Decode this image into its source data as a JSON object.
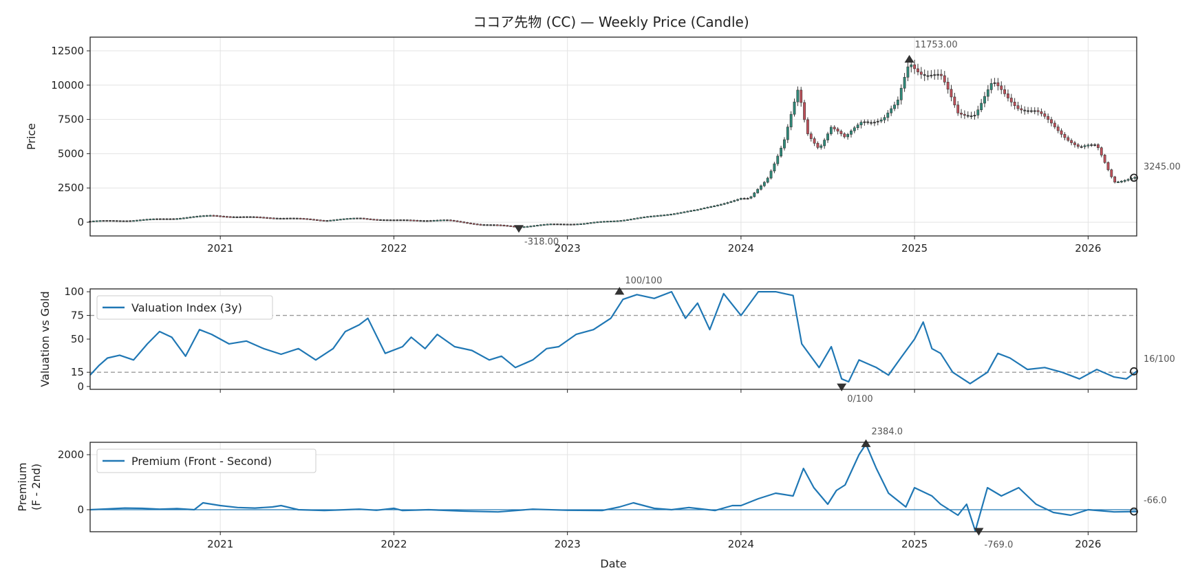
{
  "colors": {
    "line": "#1f77b4",
    "candle_up": "#2e8b7a",
    "candle_down": "#c0505a",
    "candle_neutral": "#444444",
    "threshold": "#999999",
    "marker": "#333333"
  },
  "x_axis": {
    "label": "Date",
    "ticks": [
      {
        "value": 2021.0,
        "label": "2021"
      },
      {
        "value": 2022.0,
        "label": "2022"
      },
      {
        "value": 2023.0,
        "label": "2023"
      },
      {
        "value": 2024.0,
        "label": "2024"
      },
      {
        "value": 2025.0,
        "label": "2025"
      },
      {
        "value": 2026.0,
        "label": "2026"
      }
    ],
    "range": [
      2020.25,
      2026.28
    ]
  },
  "chart_data": [
    {
      "type": "candlestick",
      "id": "price",
      "title": "ココア先物 (CC) — Weekly Price (Candle)",
      "ylabel": "Price",
      "ylim": [
        -1000,
        13500
      ],
      "yticks": [
        "0",
        "2500",
        "5000",
        "7500",
        "10000",
        "12500"
      ],
      "ytick_values": [
        0,
        2500,
        5000,
        7500,
        10000,
        12500
      ],
      "anchors": [
        [
          2020.25,
          80
        ],
        [
          2020.5,
          150
        ],
        [
          2020.75,
          300
        ],
        [
          2020.95,
          500
        ],
        [
          2021.1,
          400
        ],
        [
          2021.4,
          300
        ],
        [
          2021.6,
          150
        ],
        [
          2021.8,
          300
        ],
        [
          2022.0,
          150
        ],
        [
          2022.3,
          150
        ],
        [
          2022.5,
          -150
        ],
        [
          2022.72,
          -318
        ],
        [
          2022.9,
          -150
        ],
        [
          2023.1,
          -80
        ],
        [
          2023.3,
          150
        ],
        [
          2023.5,
          450
        ],
        [
          2023.75,
          900
        ],
        [
          2023.9,
          1400
        ],
        [
          2024.0,
          1700
        ],
        [
          2024.05,
          1700
        ],
        [
          2024.15,
          3200
        ],
        [
          2024.25,
          6000
        ],
        [
          2024.33,
          9500
        ],
        [
          2024.38,
          6500
        ],
        [
          2024.45,
          5500
        ],
        [
          2024.52,
          7000
        ],
        [
          2024.6,
          6000
        ],
        [
          2024.7,
          7500
        ],
        [
          2024.82,
          7500
        ],
        [
          2024.9,
          8500
        ],
        [
          2024.97,
          11753
        ],
        [
          2025.05,
          11000
        ],
        [
          2025.15,
          10500
        ],
        [
          2025.25,
          8000
        ],
        [
          2025.35,
          8000
        ],
        [
          2025.45,
          10000
        ],
        [
          2025.6,
          8500
        ],
        [
          2025.7,
          8000
        ],
        [
          2025.85,
          6500
        ],
        [
          2025.95,
          5500
        ],
        [
          2026.05,
          5500
        ],
        [
          2026.15,
          3000
        ],
        [
          2026.28,
          3245
        ]
      ],
      "annotations": {
        "max": {
          "x": 2024.97,
          "y": 11753,
          "label": "11753.00"
        },
        "min": {
          "x": 2022.72,
          "y": -318,
          "label": "-318.00"
        },
        "last": {
          "x": 2026.28,
          "y": 3245,
          "label": "3245.00"
        }
      }
    },
    {
      "type": "line",
      "id": "valuation",
      "ylabel": "Valuation vs Gold",
      "ylim": [
        -3,
        103
      ],
      "yticks": [
        "0",
        "15",
        "50",
        "75",
        "100"
      ],
      "ytick_values": [
        0,
        15,
        50,
        75,
        100
      ],
      "thresholds": [
        75,
        15
      ],
      "legend": "Valuation Index (3y)",
      "series": [
        [
          2020.25,
          12
        ],
        [
          2020.3,
          22
        ],
        [
          2020.35,
          30
        ],
        [
          2020.42,
          33
        ],
        [
          2020.5,
          28
        ],
        [
          2020.58,
          45
        ],
        [
          2020.65,
          58
        ],
        [
          2020.72,
          52
        ],
        [
          2020.8,
          32
        ],
        [
          2020.88,
          60
        ],
        [
          2020.95,
          55
        ],
        [
          2021.05,
          45
        ],
        [
          2021.15,
          48
        ],
        [
          2021.25,
          40
        ],
        [
          2021.35,
          34
        ],
        [
          2021.45,
          40
        ],
        [
          2021.55,
          28
        ],
        [
          2021.65,
          40
        ],
        [
          2021.72,
          58
        ],
        [
          2021.8,
          65
        ],
        [
          2021.85,
          72
        ],
        [
          2021.95,
          35
        ],
        [
          2022.05,
          42
        ],
        [
          2022.1,
          52
        ],
        [
          2022.18,
          40
        ],
        [
          2022.25,
          55
        ],
        [
          2022.35,
          42
        ],
        [
          2022.45,
          38
        ],
        [
          2022.55,
          28
        ],
        [
          2022.62,
          32
        ],
        [
          2022.7,
          20
        ],
        [
          2022.8,
          28
        ],
        [
          2022.88,
          40
        ],
        [
          2022.95,
          42
        ],
        [
          2023.05,
          55
        ],
        [
          2023.15,
          60
        ],
        [
          2023.25,
          72
        ],
        [
          2023.32,
          92
        ],
        [
          2023.4,
          97
        ],
        [
          2023.5,
          93
        ],
        [
          2023.6,
          100
        ],
        [
          2023.68,
          72
        ],
        [
          2023.75,
          88
        ],
        [
          2023.82,
          60
        ],
        [
          2023.9,
          98
        ],
        [
          2024.0,
          75
        ],
        [
          2024.1,
          100
        ],
        [
          2024.2,
          100
        ],
        [
          2024.3,
          96
        ],
        [
          2024.35,
          45
        ],
        [
          2024.45,
          20
        ],
        [
          2024.52,
          42
        ],
        [
          2024.58,
          8
        ],
        [
          2024.62,
          5
        ],
        [
          2024.68,
          28
        ],
        [
          2024.78,
          20
        ],
        [
          2024.85,
          12
        ],
        [
          2024.92,
          30
        ],
        [
          2025.0,
          50
        ],
        [
          2025.05,
          68
        ],
        [
          2025.1,
          40
        ],
        [
          2025.15,
          35
        ],
        [
          2025.22,
          15
        ],
        [
          2025.32,
          3
        ],
        [
          2025.42,
          15
        ],
        [
          2025.48,
          35
        ],
        [
          2025.55,
          30
        ],
        [
          2025.65,
          18
        ],
        [
          2025.75,
          20
        ],
        [
          2025.85,
          15
        ],
        [
          2025.95,
          8
        ],
        [
          2026.05,
          18
        ],
        [
          2026.15,
          10
        ],
        [
          2026.22,
          8
        ],
        [
          2026.28,
          16
        ]
      ],
      "extra_points": [
        [
          2023.3,
          100
        ],
        [
          2024.58,
          0
        ]
      ],
      "annotations": {
        "max": {
          "x": 2023.3,
          "y": 100,
          "label": "100/100"
        },
        "min": {
          "x": 2024.58,
          "y": 0,
          "label": "0/100"
        },
        "last": {
          "x": 2026.28,
          "y": 16,
          "label": "16/100"
        }
      }
    },
    {
      "type": "line",
      "id": "premium",
      "ylabel": "Premium",
      "ylabel2": "(F - 2nd)",
      "ylim": [
        -800,
        2450
      ],
      "yticks": [
        "0",
        "2000"
      ],
      "ytick_values": [
        0,
        2000
      ],
      "baseline": 0,
      "legend": "Premium (Front - Second)",
      "series": [
        [
          2020.25,
          0
        ],
        [
          2020.35,
          30
        ],
        [
          2020.45,
          60
        ],
        [
          2020.55,
          50
        ],
        [
          2020.65,
          20
        ],
        [
          2020.75,
          40
        ],
        [
          2020.85,
          0
        ],
        [
          2020.9,
          250
        ],
        [
          2021.0,
          150
        ],
        [
          2021.1,
          80
        ],
        [
          2021.2,
          60
        ],
        [
          2021.3,
          100
        ],
        [
          2021.35,
          150
        ],
        [
          2021.45,
          0
        ],
        [
          2021.6,
          -30
        ],
        [
          2021.8,
          20
        ],
        [
          2021.9,
          -20
        ],
        [
          2022.0,
          50
        ],
        [
          2022.05,
          -30
        ],
        [
          2022.2,
          0
        ],
        [
          2022.4,
          -50
        ],
        [
          2022.6,
          -80
        ],
        [
          2022.8,
          20
        ],
        [
          2023.0,
          -20
        ],
        [
          2023.2,
          -30
        ],
        [
          2023.3,
          100
        ],
        [
          2023.38,
          250
        ],
        [
          2023.5,
          50
        ],
        [
          2023.6,
          0
        ],
        [
          2023.7,
          80
        ],
        [
          2023.85,
          -30
        ],
        [
          2023.95,
          150
        ],
        [
          2024.0,
          150
        ],
        [
          2024.1,
          400
        ],
        [
          2024.2,
          600
        ],
        [
          2024.3,
          500
        ],
        [
          2024.36,
          1500
        ],
        [
          2024.42,
          800
        ],
        [
          2024.5,
          200
        ],
        [
          2024.55,
          700
        ],
        [
          2024.6,
          900
        ],
        [
          2024.68,
          2000
        ],
        [
          2024.72,
          2384
        ],
        [
          2024.78,
          1500
        ],
        [
          2024.85,
          600
        ],
        [
          2024.95,
          100
        ],
        [
          2025.0,
          800
        ],
        [
          2025.1,
          500
        ],
        [
          2025.15,
          200
        ],
        [
          2025.25,
          -200
        ],
        [
          2025.3,
          200
        ],
        [
          2025.35,
          -769
        ],
        [
          2025.42,
          800
        ],
        [
          2025.5,
          500
        ],
        [
          2025.6,
          800
        ],
        [
          2025.7,
          200
        ],
        [
          2025.8,
          -100
        ],
        [
          2025.9,
          -200
        ],
        [
          2026.0,
          0
        ],
        [
          2026.15,
          -80
        ],
        [
          2026.28,
          -66
        ]
      ],
      "extra_points": [
        [
          2024.72,
          2384
        ],
        [
          2025.37,
          -769
        ]
      ],
      "annotations": {
        "max": {
          "x": 2024.72,
          "y": 2384,
          "label": "2384.0"
        },
        "min": {
          "x": 2025.37,
          "y": -769,
          "label": "-769.0"
        },
        "last": {
          "x": 2026.28,
          "y": -66,
          "label": "-66.0"
        }
      }
    }
  ]
}
